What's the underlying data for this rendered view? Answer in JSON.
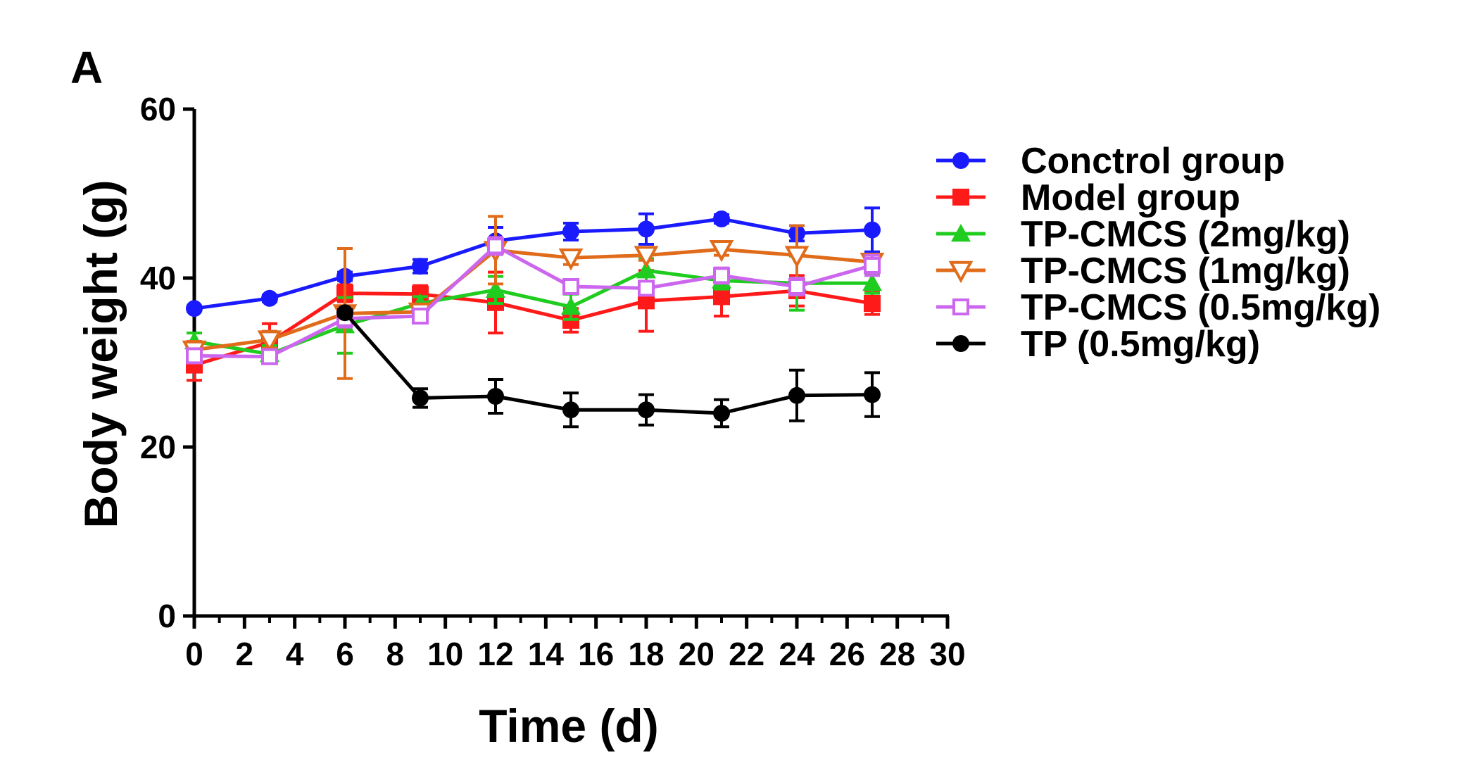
{
  "chart_data": {
    "type": "line",
    "panel_label": "A",
    "xlabel": "Time (d)",
    "ylabel": "Body weight (g)",
    "xlim": [
      0,
      30
    ],
    "ylim": [
      0,
      60
    ],
    "x_ticks": [
      0,
      2,
      4,
      6,
      8,
      10,
      12,
      14,
      16,
      18,
      20,
      22,
      24,
      26,
      28,
      30
    ],
    "y_ticks": [
      0,
      20,
      40,
      60
    ],
    "grid": false,
    "legend_position": "right",
    "series": [
      {
        "name": "Conctrol group",
        "color": "#1a1aff",
        "marker": "circle",
        "x": [
          0,
          3,
          6,
          9,
          12,
          15,
          18,
          21,
          24,
          27
        ],
        "y": [
          36.4,
          37.6,
          40.2,
          41.4,
          44.4,
          45.5,
          45.8,
          47.0,
          45.3,
          45.7
        ],
        "err": [
          0.3,
          0.4,
          0.5,
          0.8,
          1.6,
          1.0,
          1.8,
          0.5,
          0.9,
          2.6
        ]
      },
      {
        "name": "Model group",
        "color": "#ff1a1a",
        "marker": "square",
        "x": [
          0,
          3,
          6,
          9,
          12,
          15,
          18,
          21,
          24,
          27
        ],
        "y": [
          29.7,
          32.4,
          38.2,
          38.1,
          37.1,
          35.0,
          37.3,
          37.8,
          38.5,
          37.0
        ],
        "err": [
          1.8,
          2.2,
          1.0,
          1.0,
          3.6,
          1.4,
          3.6,
          2.3,
          1.8,
          1.3
        ]
      },
      {
        "name": "TP-CMCS (2mg/kg)",
        "color": "#1fcc1f",
        "marker": "triangle-up",
        "x": [
          0,
          3,
          6,
          9,
          12,
          15,
          18,
          21,
          24,
          27
        ],
        "y": [
          32.5,
          31.0,
          34.4,
          37.0,
          38.6,
          36.6,
          40.9,
          39.7,
          39.4,
          39.4
        ],
        "err": [
          1.0,
          1.0,
          3.3,
          0.8,
          1.6,
          1.5,
          1.4,
          1.0,
          3.2,
          1.2
        ]
      },
      {
        "name": "TP-CMCS (1mg/kg)",
        "color": "#e06b1a",
        "marker": "triangle-down",
        "x": [
          0,
          3,
          6,
          9,
          12,
          15,
          18,
          21,
          24,
          27
        ],
        "y": [
          31.5,
          32.7,
          35.8,
          36.0,
          43.3,
          42.4,
          42.7,
          43.4,
          42.7,
          41.9
        ],
        "err": [
          1.0,
          1.0,
          7.7,
          0.6,
          4.0,
          0.8,
          0.6,
          0.7,
          3.5,
          0.5
        ]
      },
      {
        "name": "TP-CMCS (0.5mg/kg)",
        "color": "#cc66ee",
        "marker": "square-open",
        "x": [
          0,
          3,
          6,
          9,
          12,
          15,
          18,
          21,
          24,
          27
        ],
        "y": [
          30.8,
          30.7,
          35.2,
          35.5,
          43.8,
          39.0,
          38.8,
          40.3,
          39.0,
          41.5
        ],
        "err": [
          0.8,
          0.8,
          1.0,
          0.7,
          1.0,
          0.5,
          0.5,
          0.9,
          1.0,
          1.2
        ]
      },
      {
        "name": "TP (0.5mg/kg)",
        "color": "#000000",
        "marker": "circle",
        "x": [
          6,
          9,
          12,
          15,
          18,
          21,
          24,
          27
        ],
        "y": [
          35.9,
          25.8,
          26.0,
          24.4,
          24.4,
          24.0,
          26.1,
          26.2
        ],
        "err": [
          0.4,
          1.1,
          2.0,
          2.0,
          1.8,
          1.6,
          3.0,
          2.6
        ]
      }
    ]
  }
}
